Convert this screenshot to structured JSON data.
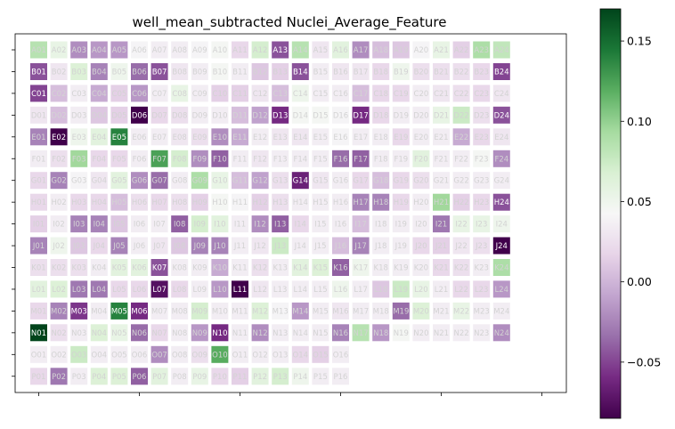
{
  "chart_data": {
    "type": "heatmap",
    "title": "well_mean_subtracted Nuclei_Average_Feature",
    "rows": [
      "A",
      "B",
      "C",
      "D",
      "E",
      "F",
      "G",
      "H",
      "I",
      "J",
      "K",
      "L",
      "M",
      "N",
      "O",
      "P"
    ],
    "n_cols": 24,
    "colorbar": {
      "colormap": "PRGn",
      "vmin": -0.085,
      "vmax": 0.17,
      "ticks": [
        -0.05,
        0.0,
        0.05,
        0.1,
        0.15
      ],
      "tick_labels": [
        "−0.05",
        "0.00",
        "0.05",
        "0.10",
        "0.15"
      ]
    },
    "values": [
      [
        0.085,
        0.055,
        -0.02,
        -0.015,
        -0.015,
        0.04,
        0.035,
        0.035,
        0.04,
        0.045,
        0.02,
        0.07,
        -0.045,
        0.085,
        0.03,
        0.06,
        -0.02,
        0.005,
        0.01,
        0.04,
        0.055,
        0.015,
        0.09,
        0.08
      ],
      [
        -0.045,
        0.03,
        0.065,
        -0.025,
        0.05,
        -0.035,
        -0.045,
        0.03,
        0.035,
        0.045,
        0.035,
        0.01,
        0.015,
        -0.045,
        0.035,
        0.03,
        0.03,
        0.02,
        0.05,
        0.025,
        0.025,
        0.025,
        0.02,
        -0.05
      ],
      [
        -0.05,
        0.005,
        0.035,
        -0.005,
        0.015,
        -0.015,
        0.035,
        0.055,
        0.035,
        0.015,
        0.015,
        0.03,
        0.005,
        0.05,
        0.035,
        0.035,
        0.005,
        0.02,
        0.02,
        0.035,
        0.03,
        0.025,
        0.02,
        0.03
      ],
      [
        0.03,
        0.005,
        0.035,
        0.01,
        0.015,
        -0.085,
        0.02,
        0.025,
        0.035,
        0.035,
        0.005,
        -0.01,
        -0.06,
        0.045,
        0.045,
        0.04,
        -0.06,
        0.02,
        0.035,
        0.035,
        0.055,
        0.075,
        0.025,
        -0.045
      ],
      [
        -0.025,
        -0.085,
        0.05,
        0.06,
        0.14,
        0.035,
        0.035,
        0.03,
        0.025,
        -0.02,
        -0.005,
        0.035,
        0.03,
        0.03,
        0.035,
        0.04,
        0.035,
        0.035,
        0.02,
        0.035,
        0.035,
        -0.005,
        0.02,
        0.03
      ],
      [
        0.035,
        0.025,
        0.095,
        0.02,
        0.02,
        0.035,
        0.125,
        0.07,
        -0.02,
        -0.04,
        0.035,
        0.03,
        0.035,
        0.035,
        0.035,
        -0.035,
        -0.04,
        0.035,
        0.035,
        0.06,
        0.035,
        0.035,
        0.045,
        -0.02
      ],
      [
        0.02,
        -0.025,
        0.04,
        0.03,
        0.06,
        -0.02,
        -0.035,
        0.035,
        0.09,
        0.055,
        0.005,
        -0.01,
        0.025,
        -0.065,
        0.03,
        0.035,
        0.02,
        0.005,
        0.02,
        0.025,
        0.035,
        0.035,
        0.035,
        0.035
      ],
      [
        0.02,
        0.035,
        0.02,
        0.02,
        0.005,
        0.025,
        0.02,
        0.025,
        0.015,
        0.045,
        0.04,
        0.015,
        0.025,
        0.035,
        0.035,
        0.035,
        -0.025,
        -0.025,
        0.02,
        0.035,
        0.095,
        0.015,
        0.02,
        -0.045
      ],
      [
        0.015,
        0.035,
        -0.025,
        -0.025,
        0.01,
        0.035,
        0.035,
        -0.04,
        0.07,
        0.06,
        0.035,
        -0.02,
        -0.04,
        0.02,
        0.035,
        0.035,
        0.005,
        0.035,
        0.035,
        0.035,
        -0.03,
        0.055,
        0.055,
        0.05
      ],
      [
        -0.025,
        0.05,
        0.01,
        0.02,
        -0.025,
        0.035,
        0.03,
        0.01,
        -0.025,
        -0.025,
        0.035,
        0.03,
        0.075,
        0.035,
        0.035,
        0.005,
        -0.025,
        0.035,
        0.035,
        0.02,
        0.015,
        0.03,
        0.025,
        -0.085
      ],
      [
        0.025,
        0.025,
        0.025,
        0.035,
        0.06,
        0.06,
        -0.045,
        0.035,
        0.035,
        -0.005,
        0.035,
        0.025,
        0.035,
        0.06,
        0.065,
        -0.04,
        0.05,
        0.035,
        0.035,
        0.035,
        0.02,
        0.025,
        0.035,
        0.09
      ],
      [
        0.06,
        0.065,
        -0.03,
        -0.03,
        0.02,
        0.02,
        -0.075,
        0.02,
        0.035,
        -0.015,
        -0.085,
        0.03,
        0.035,
        0.035,
        0.035,
        0.05,
        0.035,
        0.01,
        0.075,
        0.055,
        0.035,
        0.02,
        0.02,
        -0.015
      ],
      [
        0.02,
        -0.025,
        -0.055,
        0.035,
        0.14,
        -0.06,
        0.035,
        0.035,
        0.07,
        0.035,
        0.035,
        0.065,
        0.04,
        -0.015,
        0.035,
        0.03,
        0.035,
        0.035,
        -0.035,
        0.065,
        0.035,
        0.055,
        0.035,
        0.035
      ],
      [
        0.17,
        0.025,
        0.035,
        0.065,
        0.055,
        -0.035,
        0.02,
        0.035,
        -0.015,
        -0.06,
        0.035,
        -0.02,
        0.035,
        0.035,
        0.035,
        -0.025,
        0.085,
        -0.015,
        0.045,
        0.035,
        0.035,
        0.035,
        0.035,
        -0.02
      ],
      [
        0.035,
        0.035,
        0.075,
        0.035,
        0.035,
        0.035,
        -0.02,
        0.035,
        0.025,
        0.12,
        0.035,
        0.035,
        0.035,
        0.02,
        0.015,
        0.035,
        null,
        null,
        null,
        null,
        null,
        null,
        null,
        null
      ],
      [
        0.02,
        -0.03,
        0.035,
        0.065,
        0.065,
        -0.04,
        0.06,
        0.035,
        0.055,
        0.02,
        0.015,
        0.06,
        0.07,
        0.05,
        0.035,
        0.035,
        null,
        null,
        null,
        null,
        null,
        null,
        null,
        null
      ]
    ]
  }
}
